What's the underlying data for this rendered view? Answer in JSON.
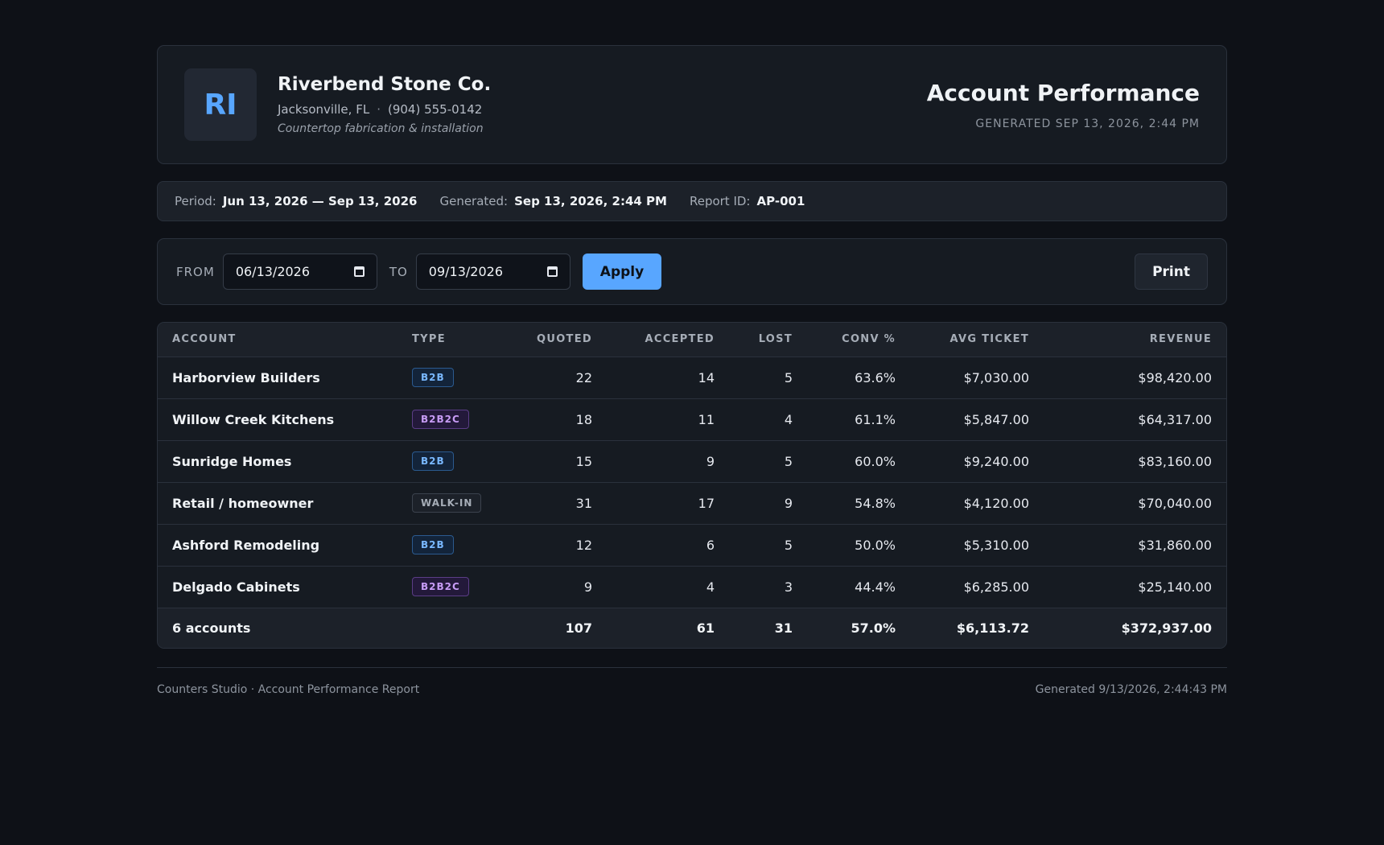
{
  "header": {
    "logo_initials": "RI",
    "company_name": "Riverbend Stone Co.",
    "location": "Jacksonville, FL",
    "separator": "·",
    "phone": "(904) 555-0142",
    "tagline": "Countertop fabrication & installation",
    "report_title": "Account Performance",
    "generated_caption": "GENERATED SEP 13, 2026, 2:44 PM"
  },
  "meta": {
    "period_label": "Period:",
    "period_value": "Jun 13, 2026 — Sep 13, 2026",
    "generated_label": "Generated:",
    "generated_value": "Sep 13, 2026, 2:44 PM",
    "report_id_label": "Report ID:",
    "report_id_value": "AP-001"
  },
  "controls": {
    "from_label": "FROM",
    "from_value": "06/13/2026",
    "to_label": "TO",
    "to_value": "09/13/2026",
    "apply_label": "Apply",
    "print_label": "Print"
  },
  "table": {
    "headers": {
      "account": "ACCOUNT",
      "type": "TYPE",
      "quoted": "QUOTED",
      "accepted": "ACCEPTED",
      "lost": "LOST",
      "conv": "CONV %",
      "avg_ticket": "AVG TICKET",
      "revenue": "REVENUE"
    },
    "rows": [
      {
        "account": "Harborview Builders",
        "type": "B2B",
        "type_style": "b2b",
        "quoted": "22",
        "accepted": "14",
        "lost": "5",
        "conv": "63.6%",
        "avg_ticket": "$7,030.00",
        "revenue": "$98,420.00"
      },
      {
        "account": "Willow Creek Kitchens",
        "type": "B2B2C",
        "type_style": "b2b2c",
        "quoted": "18",
        "accepted": "11",
        "lost": "4",
        "conv": "61.1%",
        "avg_ticket": "$5,847.00",
        "revenue": "$64,317.00"
      },
      {
        "account": "Sunridge Homes",
        "type": "B2B",
        "type_style": "b2b",
        "quoted": "15",
        "accepted": "9",
        "lost": "5",
        "conv": "60.0%",
        "avg_ticket": "$9,240.00",
        "revenue": "$83,160.00"
      },
      {
        "account": "Retail / homeowner",
        "type": "WALK-IN",
        "type_style": "walkin",
        "quoted": "31",
        "accepted": "17",
        "lost": "9",
        "conv": "54.8%",
        "avg_ticket": "$4,120.00",
        "revenue": "$70,040.00"
      },
      {
        "account": "Ashford Remodeling",
        "type": "B2B",
        "type_style": "b2b",
        "quoted": "12",
        "accepted": "6",
        "lost": "5",
        "conv": "50.0%",
        "avg_ticket": "$5,310.00",
        "revenue": "$31,860.00"
      },
      {
        "account": "Delgado Cabinets",
        "type": "B2B2C",
        "type_style": "b2b2c",
        "quoted": "9",
        "accepted": "4",
        "lost": "3",
        "conv": "44.4%",
        "avg_ticket": "$6,285.00",
        "revenue": "$25,140.00"
      }
    ],
    "totals": {
      "account": "6 accounts",
      "quoted": "107",
      "accepted": "61",
      "lost": "31",
      "conv": "57.0%",
      "avg_ticket": "$6,113.72",
      "revenue": "$372,937.00"
    }
  },
  "footer": {
    "left": "Counters Studio · Account Performance Report",
    "right": "Generated 9/13/2026, 2:44:43 PM"
  },
  "colors": {
    "background": "#0e1117",
    "accent": "#58a6ff",
    "b2b": "#79b8ff",
    "b2b2c": "#c79cf5"
  },
  "icons": {
    "date_picker": "calendar-icon"
  }
}
